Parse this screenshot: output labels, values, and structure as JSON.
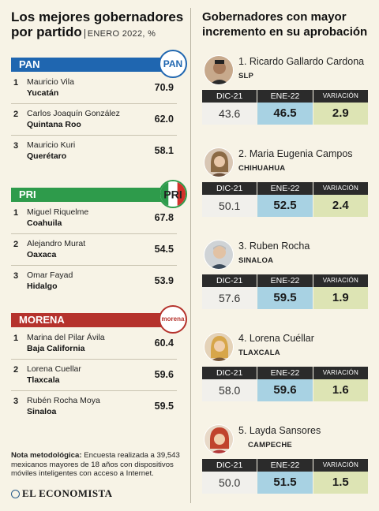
{
  "left_title": "Los mejores gobernadores por partido",
  "left_subtitle": "ENERO 2022, %",
  "right_title": "Gobernadores con mayor incremento en su aprobación",
  "colors": {
    "PAN": "#1f66b0",
    "PRI": "#2e9b4b",
    "MORENA": "#b5322c",
    "ene_cell": "#a8d2e3",
    "var_cell": "#dde4b4"
  },
  "parties": [
    {
      "name": "PAN",
      "logo_text": "PAN",
      "color": "#1f66b0",
      "governors": [
        {
          "rank": "1",
          "name": "Mauricio Vila",
          "state": "Yucatán",
          "score": "70.9"
        },
        {
          "rank": "2",
          "name": "Carlos Joaquín González",
          "state": "Quintana Roo",
          "score": "62.0"
        },
        {
          "rank": "3",
          "name": "Mauricio Kuri",
          "state": "Querétaro",
          "score": "58.1"
        }
      ]
    },
    {
      "name": "PRI",
      "logo_text": "PRI",
      "color": "#2e9b4b",
      "governors": [
        {
          "rank": "1",
          "name": "Miguel Riquelme",
          "state": "Coahuila",
          "score": "67.8"
        },
        {
          "rank": "2",
          "name": "Alejandro Murat",
          "state": "Oaxaca",
          "score": "54.5"
        },
        {
          "rank": "3",
          "name": "Omar Fayad",
          "state": "Hidalgo",
          "score": "53.9"
        }
      ]
    },
    {
      "name": "MORENA",
      "logo_text": "morena",
      "color": "#b5322c",
      "governors": [
        {
          "rank": "1",
          "name": "Marina del Pilar Ávila",
          "state": "Baja California",
          "score": "60.4"
        },
        {
          "rank": "2",
          "name": "Lorena Cuellar",
          "state": "Tlaxcala",
          "score": "59.6"
        },
        {
          "rank": "3",
          "name": "Rubén Rocha Moya",
          "state": "Sinaloa",
          "score": "59.5"
        }
      ]
    }
  ],
  "table_headers": {
    "dic": "DIC-21",
    "ene": "ENE-22",
    "var": "VARIACIÓN"
  },
  "increases": [
    {
      "label": "1. Ricardo Gallardo Cardona",
      "state": "SLP",
      "dic": "43.6",
      "ene": "46.5",
      "var": "2.9"
    },
    {
      "label": "2. Maria Eugenia Campos",
      "state": "CHIHUAHUA",
      "dic": "50.1",
      "ene": "52.5",
      "var": "2.4"
    },
    {
      "label": "3. Ruben Rocha",
      "state": "SINALOA",
      "dic": "57.6",
      "ene": "59.5",
      "var": "1.9"
    },
    {
      "label": "4. Lorena Cuéllar",
      "state": "TLAXCALA",
      "dic": "58.0",
      "ene": "59.6",
      "var": "1.6"
    },
    {
      "label": "5. Layda Sansores",
      "state": "CAMPECHE",
      "dic": "50.0",
      "ene": "51.5",
      "var": "1.5"
    }
  ],
  "note_label": "Nota metodológica:",
  "note_text": "Encuesta realizada a 39,543 mexicanos mayores de 18 años con dispositivos móviles inteligentes con acceso a Internet.",
  "brand": "EL ECONOMISTA",
  "chart_data": {
    "type": "table",
    "title": "Los mejores gobernadores por partido",
    "subtitle": "ENERO 2022, %",
    "ranking_by_party": [
      {
        "party": "PAN",
        "governors": [
          "Mauricio Vila",
          "Carlos Joaquín González",
          "Mauricio Kuri"
        ],
        "states": [
          "Yucatán",
          "Quintana Roo",
          "Querétaro"
        ],
        "values": [
          70.9,
          62.0,
          58.1
        ]
      },
      {
        "party": "PRI",
        "governors": [
          "Miguel Riquelme",
          "Alejandro Murat",
          "Omar Fayad"
        ],
        "states": [
          "Coahuila",
          "Oaxaca",
          "Hidalgo"
        ],
        "values": [
          67.8,
          54.5,
          53.9
        ]
      },
      {
        "party": "MORENA",
        "governors": [
          "Marina del Pilar Ávila",
          "Lorena Cuellar",
          "Rubén Rocha Moya"
        ],
        "states": [
          "Baja California",
          "Tlaxcala",
          "Sinaloa"
        ],
        "values": [
          60.4,
          59.6,
          59.5
        ]
      }
    ],
    "increase_title": "Gobernadores con mayor incremento en su aprobación",
    "increase_columns": [
      "DIC-21",
      "ENE-22",
      "VARIACIÓN"
    ],
    "increase_rows": [
      {
        "governor": "Ricardo Gallardo Cardona",
        "state": "SLP",
        "values": [
          43.6,
          46.5,
          2.9
        ]
      },
      {
        "governor": "Maria Eugenia Campos",
        "state": "CHIHUAHUA",
        "values": [
          50.1,
          52.5,
          2.4
        ]
      },
      {
        "governor": "Ruben Rocha",
        "state": "SINALOA",
        "values": [
          57.6,
          59.5,
          1.9
        ]
      },
      {
        "governor": "Lorena Cuéllar",
        "state": "TLAXCALA",
        "values": [
          58.0,
          59.6,
          1.6
        ]
      },
      {
        "governor": "Layda Sansores",
        "state": "CAMPECHE",
        "values": [
          50.0,
          51.5,
          1.5
        ]
      }
    ]
  }
}
